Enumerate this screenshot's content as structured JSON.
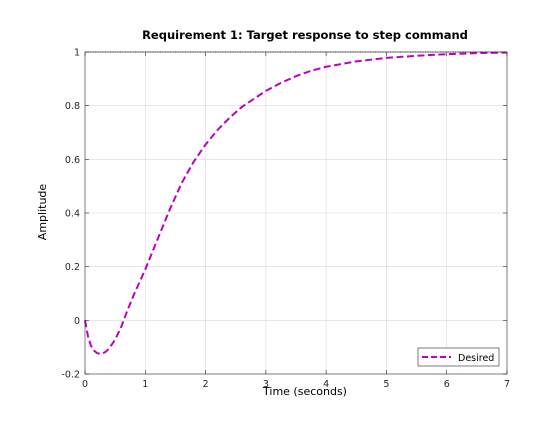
{
  "chart_data": {
    "type": "line",
    "title": "Requirement 1: Target response to step command",
    "xlabel": "Time (seconds)",
    "ylabel": "Amplitude",
    "xlim": [
      0,
      7
    ],
    "ylim": [
      -0.2,
      1
    ],
    "x_ticks": [
      0,
      1,
      2,
      3,
      4,
      5,
      6,
      7
    ],
    "x_tick_labels": [
      "0",
      "1",
      "2",
      "3",
      "4",
      "5",
      "6",
      "7"
    ],
    "y_ticks": [
      -0.2,
      0,
      0.2,
      0.4,
      0.6,
      0.8,
      1
    ],
    "y_tick_labels": [
      "-0.2",
      "0",
      "0.2",
      "0.4",
      "0.6",
      "0.8",
      "1"
    ],
    "grid": true,
    "legend_placement": "bottom-right",
    "reference_line": {
      "y": 1,
      "style": "dotted",
      "color": "#000000"
    },
    "series": [
      {
        "name": "Desired",
        "color": "#bf00bf",
        "line_style": "dashed",
        "x": [
          0,
          0.05,
          0.1,
          0.15,
          0.2,
          0.25,
          0.3,
          0.35,
          0.4,
          0.5,
          0.6,
          0.7,
          0.8,
          0.9,
          1.0,
          1.2,
          1.4,
          1.6,
          1.8,
          2.0,
          2.2,
          2.4,
          2.6,
          2.8,
          3.0,
          3.25,
          3.5,
          3.75,
          4.0,
          4.5,
          5.0,
          5.5,
          6.0,
          6.5,
          7.0
        ],
        "y": [
          0,
          -0.06,
          -0.095,
          -0.113,
          -0.122,
          -0.125,
          -0.123,
          -0.116,
          -0.105,
          -0.072,
          -0.025,
          0.035,
          0.09,
          0.14,
          0.19,
          0.3,
          0.41,
          0.51,
          0.59,
          0.655,
          0.71,
          0.755,
          0.795,
          0.825,
          0.855,
          0.885,
          0.91,
          0.93,
          0.945,
          0.965,
          0.978,
          0.986,
          0.992,
          0.996,
          0.998
        ]
      }
    ]
  }
}
